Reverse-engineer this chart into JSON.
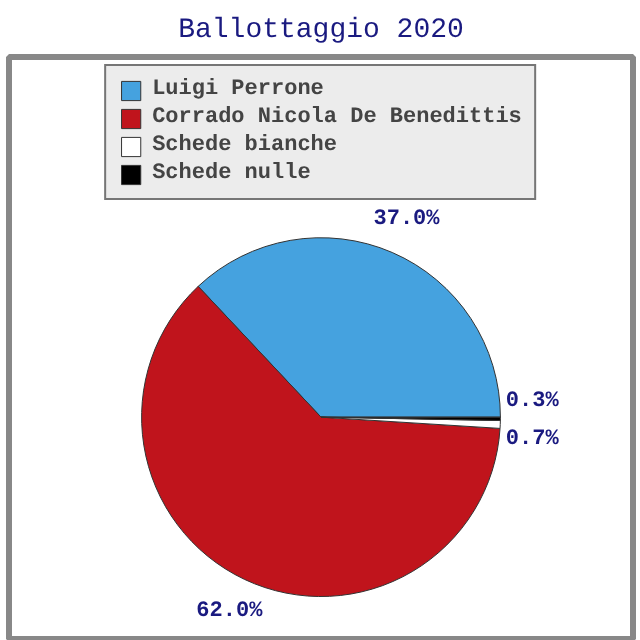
{
  "chart_data": {
    "type": "pie",
    "title": "Ballottaggio 2020",
    "categories": [
      "Luigi Perrone",
      "Corrado Nicola De Benedittis",
      "Schede bianche",
      "Schede nulle"
    ],
    "values": [
      37.0,
      62.0,
      0.7,
      0.3
    ],
    "colors": [
      "#45a2df",
      "#c0141c",
      "#ffffff",
      "#000000"
    ],
    "value_labels": [
      "37.0%",
      "62.0%",
      "0.7%",
      "0.3%"
    ],
    "legend": "top"
  }
}
